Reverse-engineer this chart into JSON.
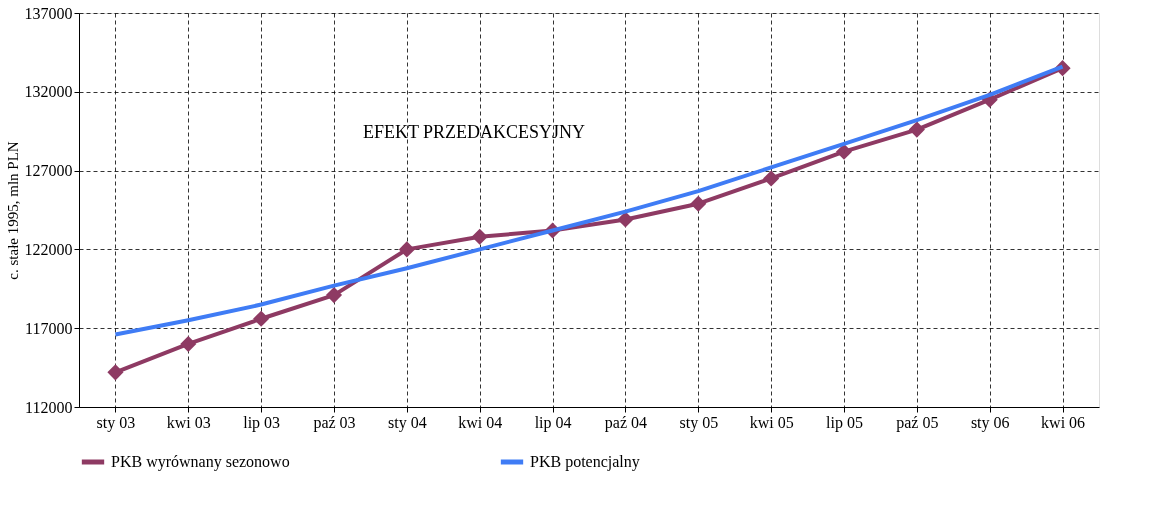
{
  "chart_data": {
    "type": "line",
    "ylabel": "c. stałe 1995, mln PLN",
    "categories": [
      "sty 03",
      "kwi 03",
      "lip 03",
      "paź 03",
      "sty 04",
      "kwi 04",
      "lip 04",
      "paź 04",
      "sty 05",
      "kwi 05",
      "lip 05",
      "paź 05",
      "sty 06",
      "kwi 06"
    ],
    "series": [
      {
        "name": "PKB wyrównany sezonowo",
        "color": "#8e3a63",
        "marker": "diamond",
        "values": [
          114200,
          116000,
          117600,
          119100,
          122000,
          122800,
          123200,
          123900,
          124900,
          126500,
          128200,
          129600,
          131500,
          133500
        ]
      },
      {
        "name": "PKB potencjalny",
        "color": "#3f7cf5",
        "marker": "none",
        "values": [
          116600,
          117500,
          118500,
          119700,
          120800,
          122000,
          123200,
          124400,
          125700,
          127200,
          128700,
          130200,
          131800,
          133600
        ]
      }
    ],
    "ylim": [
      112000,
      137000
    ],
    "yticks": [
      112000,
      117000,
      122000,
      127000,
      132000,
      137000
    ],
    "grid": true,
    "legend": "bottom",
    "line_style": "solid",
    "annotations": [
      "EFEKT PRZEDAKCESYJNY"
    ]
  }
}
